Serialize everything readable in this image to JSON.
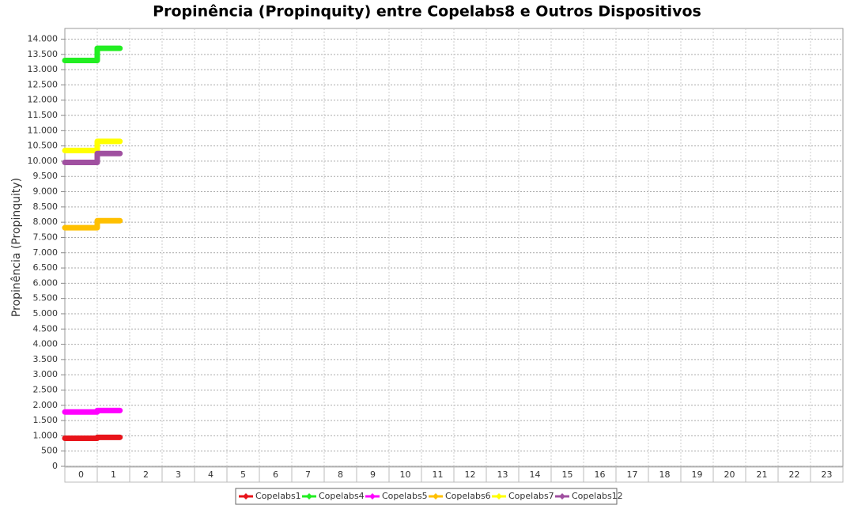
{
  "chart_data": {
    "type": "step",
    "title": "Propinência (Propinquity) entre Copelabs8 e Outros Dispositivos",
    "y_label": "Propinência (Propinquity)",
    "categories": [
      "0",
      "1",
      "2",
      "3",
      "4",
      "5",
      "6",
      "7",
      "8",
      "9",
      "10",
      "11",
      "12",
      "13",
      "14",
      "15",
      "16",
      "17",
      "18",
      "19",
      "20",
      "21",
      "22",
      "23"
    ],
    "ylim": [
      0,
      14350
    ],
    "yticks": [
      0,
      500,
      {
        "value": 1000,
        "label": "1.000"
      },
      {
        "value": 1500,
        "label": "1.500"
      },
      {
        "value": 2000,
        "label": "2.000"
      },
      {
        "value": 2500,
        "label": "2.500"
      },
      {
        "value": 3000,
        "label": "3.000"
      },
      {
        "value": 3500,
        "label": "3.500"
      },
      {
        "value": 4000,
        "label": "4.000"
      },
      {
        "value": 4500,
        "label": "4.500"
      },
      {
        "value": 5000,
        "label": "5.000"
      },
      {
        "value": 5500,
        "label": "5.500"
      },
      {
        "value": 6000,
        "label": "6.000"
      },
      {
        "value": 6500,
        "label": "6.500"
      },
      {
        "value": 7000,
        "label": "7.000"
      },
      {
        "value": 7500,
        "label": "7.500"
      },
      {
        "value": 8000,
        "label": "8.000"
      },
      {
        "value": 8500,
        "label": "8.500"
      },
      {
        "value": 9000,
        "label": "9.000"
      },
      {
        "value": 9500,
        "label": "9.500"
      },
      {
        "value": 10000,
        "label": "10.000"
      },
      {
        "value": 10500,
        "label": "10.500"
      },
      {
        "value": 11000,
        "label": "11.000"
      },
      {
        "value": 11500,
        "label": "11.500"
      },
      {
        "value": 12000,
        "label": "12.000"
      },
      {
        "value": 12500,
        "label": "12.500"
      },
      {
        "value": 13000,
        "label": "13.000"
      },
      {
        "value": 13500,
        "label": "13.500"
      },
      {
        "value": 14000,
        "label": "14.000"
      }
    ],
    "grid": true,
    "legend": "bottom",
    "series": [
      {
        "name": "Copelabs1",
        "color": "#e8141a",
        "values": [
          920,
          950,
          null,
          null,
          null,
          null,
          null,
          null,
          null,
          null,
          null,
          null,
          null,
          null,
          null,
          null,
          null,
          null,
          null,
          null,
          null,
          null,
          null,
          null
        ]
      },
      {
        "name": "Copelabs4",
        "color": "#22ee22",
        "values": [
          13300,
          13700,
          null,
          null,
          null,
          null,
          null,
          null,
          null,
          null,
          null,
          null,
          null,
          null,
          null,
          null,
          null,
          null,
          null,
          null,
          null,
          null,
          null,
          null
        ]
      },
      {
        "name": "Copelabs5",
        "color": "#ff00ff",
        "values": [
          1780,
          1830,
          null,
          null,
          null,
          null,
          null,
          null,
          null,
          null,
          null,
          null,
          null,
          null,
          null,
          null,
          null,
          null,
          null,
          null,
          null,
          null,
          null,
          null
        ]
      },
      {
        "name": "Copelabs6",
        "color": "#ffc000",
        "values": [
          7820,
          8050,
          null,
          null,
          null,
          null,
          null,
          null,
          null,
          null,
          null,
          null,
          null,
          null,
          null,
          null,
          null,
          null,
          null,
          null,
          null,
          null,
          null,
          null
        ]
      },
      {
        "name": "Copelabs7",
        "color": "#ffff00",
        "values": [
          10350,
          10650,
          null,
          null,
          null,
          null,
          null,
          null,
          null,
          null,
          null,
          null,
          null,
          null,
          null,
          null,
          null,
          null,
          null,
          null,
          null,
          null,
          null,
          null
        ]
      },
      {
        "name": "Copelabs12",
        "color": "#a050a0",
        "values": [
          9960,
          10250,
          null,
          null,
          null,
          null,
          null,
          null,
          null,
          null,
          null,
          null,
          null,
          null,
          null,
          null,
          null,
          null,
          null,
          null,
          null,
          null,
          null,
          null
        ]
      }
    ]
  }
}
